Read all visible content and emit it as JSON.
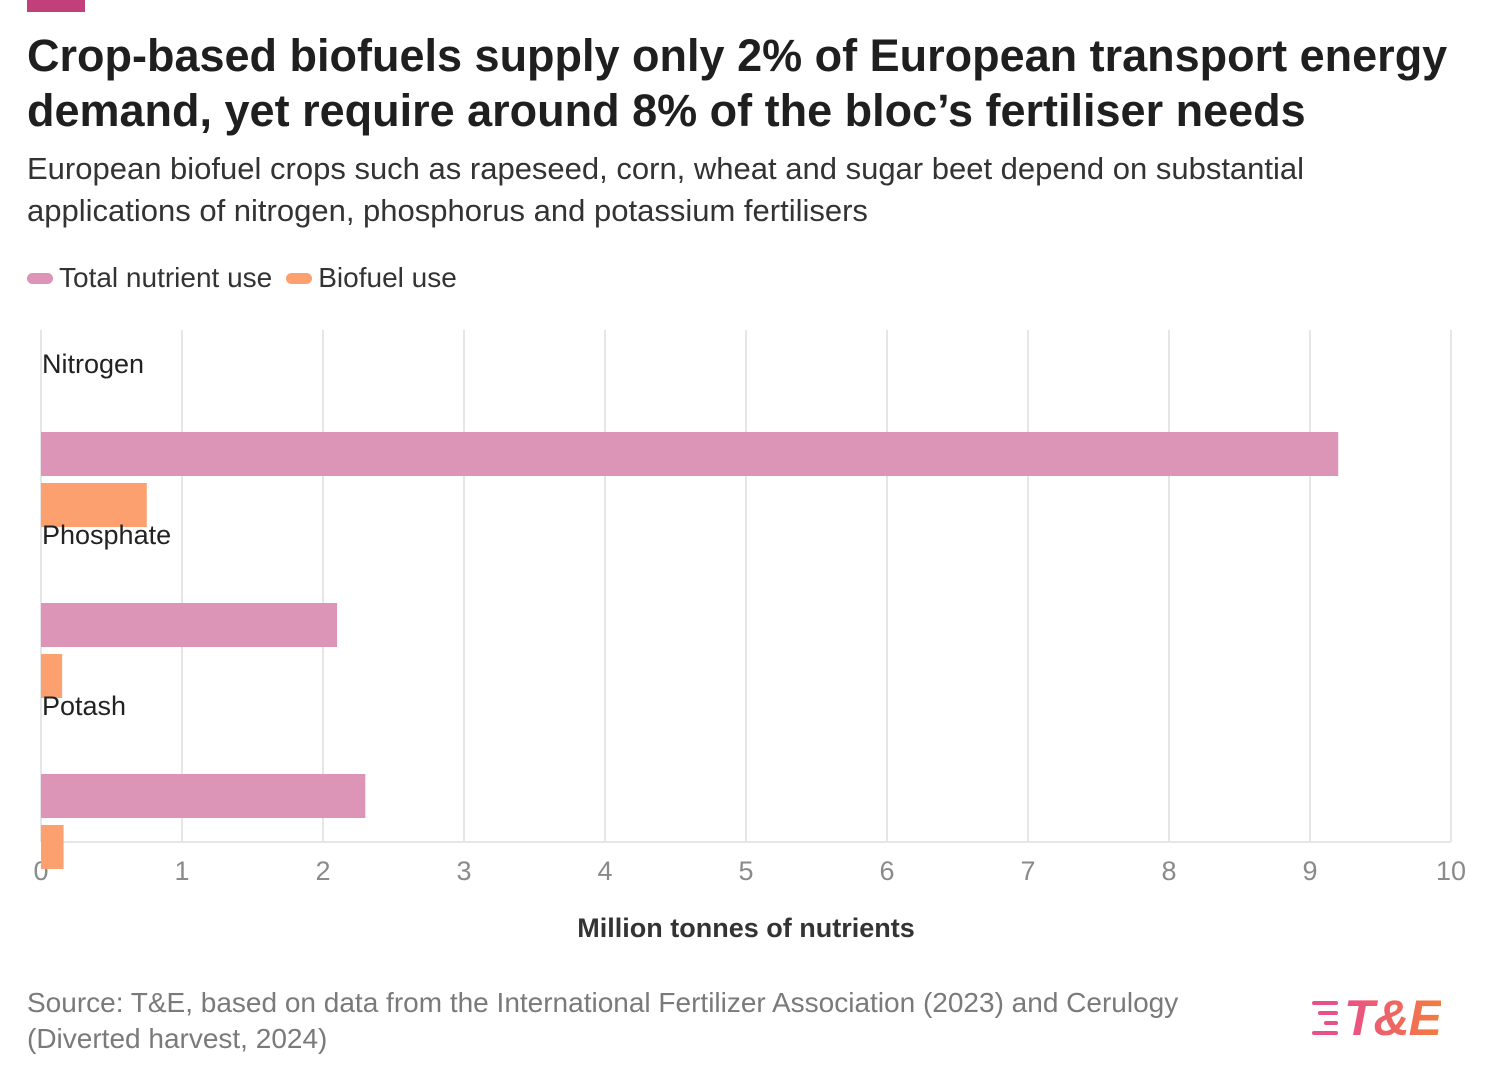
{
  "header": {
    "title": "Crop-based biofuels supply only 2% of European transport energy demand, yet require around 8% of the bloc’s fertiliser needs",
    "subtitle": "European biofuel crops such as rapeseed, corn, wheat and sugar beet depend on substantial applications of nitrogen, phosphorus and potassium fertilisers"
  },
  "legend": {
    "total_label": "Total nutrient use",
    "biofuel_label": "Biofuel use"
  },
  "colors": {
    "accent": "#c2407a",
    "total": "#dc94b7",
    "biofuel": "#fca070",
    "grid": "#e6e6e6",
    "logo_pink": "#e8508a",
    "logo_orange": "#f47c3c"
  },
  "chart_data": {
    "type": "bar",
    "orientation": "horizontal",
    "categories": [
      "Nitrogen",
      "Phosphate",
      "Potash"
    ],
    "series": [
      {
        "name": "Total nutrient use",
        "values": [
          9.2,
          2.1,
          2.3
        ]
      },
      {
        "name": "Biofuel use",
        "values": [
          0.75,
          0.15,
          0.16
        ]
      }
    ],
    "xlabel": "Million tonnes of nutrients",
    "ylabel": "",
    "xlim": [
      0,
      10
    ],
    "xticks": [
      0,
      1,
      2,
      3,
      4,
      5,
      6,
      7,
      8,
      9,
      10
    ],
    "grid": true,
    "legend_position": "top-left"
  },
  "footer": {
    "source": "Source: T&E, based on data from the International Fertilizer Association (2023) and Cerulogy (Diverted harvest, 2024)"
  },
  "logo": {
    "text": "T&E"
  }
}
